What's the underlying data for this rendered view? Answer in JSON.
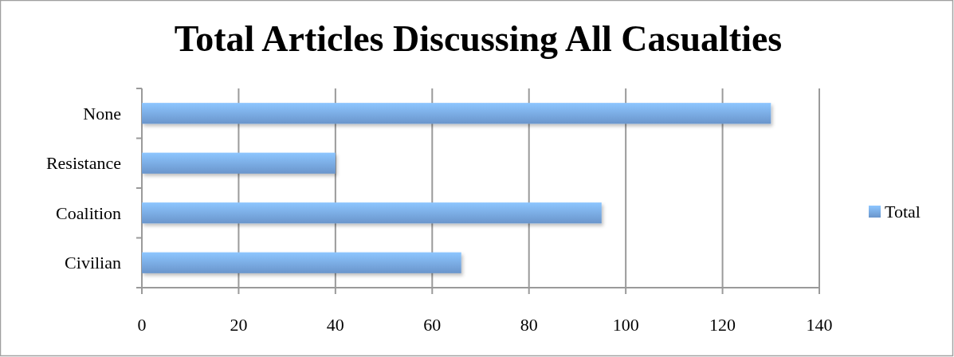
{
  "chart_data": {
    "type": "bar",
    "orientation": "horizontal",
    "title": "Total Articles Discussing All Casualties",
    "categories": [
      "None",
      "Resistance",
      "Coalition",
      "Civilian"
    ],
    "series": [
      {
        "name": "Total",
        "color": "#78a9e6",
        "values": [
          130,
          40,
          95,
          66
        ]
      }
    ],
    "xlim": [
      0,
      140
    ],
    "xticks": [
      0,
      20,
      40,
      60,
      80,
      100,
      120,
      140
    ],
    "grid": "x",
    "legend": "right"
  }
}
